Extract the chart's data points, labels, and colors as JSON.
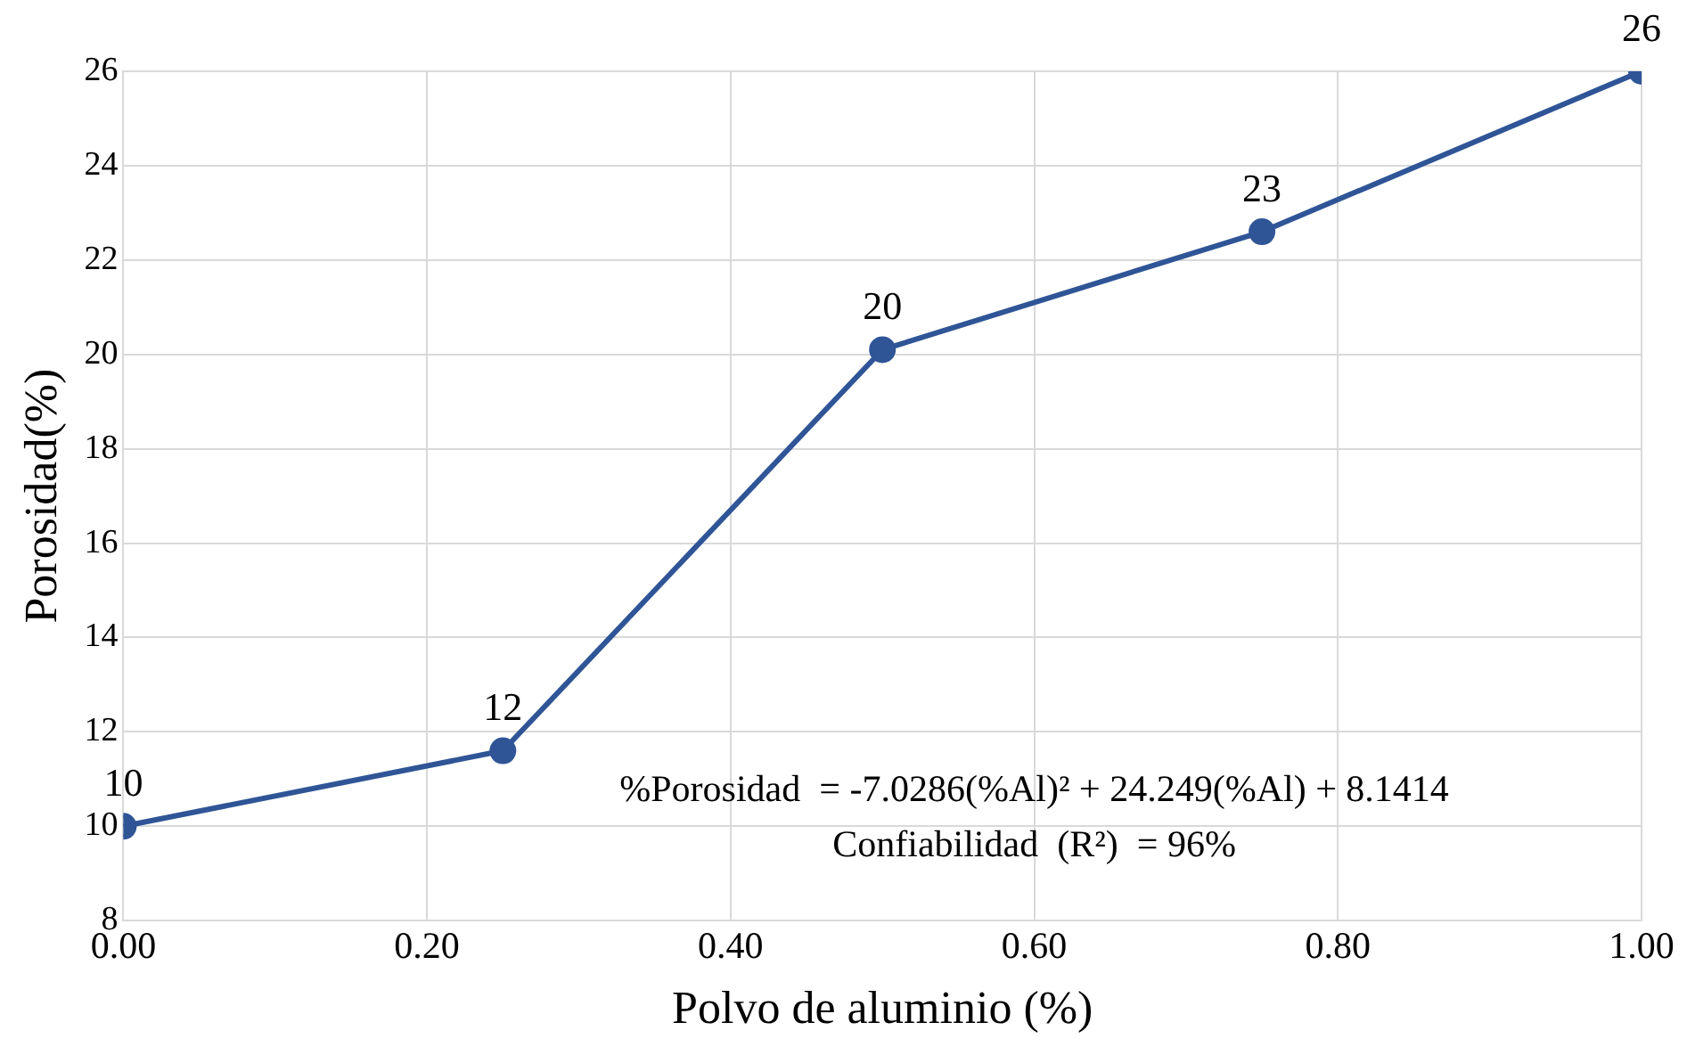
{
  "chart_data": {
    "type": "line",
    "xlabel": "Polvo de aluminio (%)",
    "ylabel": "Porosidad(%)",
    "x": [
      0,
      0.25,
      0.5,
      0.75,
      1.0
    ],
    "series": [
      {
        "color": "#2f5597",
        "values": [
          10,
          11.6,
          20.1,
          22.6,
          26
        ],
        "value_labels": [
          "10",
          "12",
          "20",
          "23",
          "26"
        ]
      }
    ],
    "xlim": [
      0,
      1
    ],
    "xticks": [
      {
        "value": 0,
        "label": "0.00"
      },
      {
        "value": 0.2,
        "label": "0.20"
      },
      {
        "value": 0.4,
        "label": "0.40"
      },
      {
        "value": 0.6,
        "label": "0.60"
      },
      {
        "value": 0.8,
        "label": "0.80"
      },
      {
        "value": 1,
        "label": "1.00"
      }
    ],
    "ylim": [
      8,
      26
    ],
    "yticks": [
      8,
      10,
      12,
      14,
      16,
      18,
      20,
      22,
      24,
      26
    ],
    "grid": true,
    "marker": "circle",
    "line_style": "solid",
    "legend": false,
    "annotations": [
      "%Porosidad  = -7.0286(%Al)² + 24.249(%Al) + 8.1414",
      "Confiabilidad  (R²)  = 96%"
    ]
  }
}
